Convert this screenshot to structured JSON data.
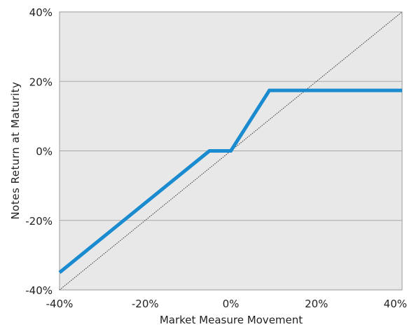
{
  "chart_data": {
    "type": "line",
    "title": "",
    "xlabel": "Market Measure Movement",
    "ylabel": "Notes Return at Maturity",
    "xlim": [
      -40,
      40
    ],
    "ylim": [
      -40,
      40
    ],
    "x_ticks": [
      -40,
      -20,
      0,
      20,
      40
    ],
    "y_ticks": [
      -40,
      -20,
      0,
      20,
      40
    ],
    "x_tick_labels": [
      "-40%",
      "-20%",
      "0%",
      "20%",
      "40%"
    ],
    "y_tick_labels": [
      "-40%",
      "-20%",
      "0%",
      "20%",
      "40%"
    ],
    "grid": "horizontal",
    "background": "#e8e8e8",
    "series": [
      {
        "style": "solid",
        "color": "#1b8bd0",
        "points": [
          [
            -40,
            -35
          ],
          [
            -5,
            0
          ],
          [
            0,
            0
          ],
          [
            9,
            17.4
          ],
          [
            40,
            17.4
          ]
        ]
      },
      {
        "style": "dotted",
        "color": "#333333",
        "points": [
          [
            -40,
            -40
          ],
          [
            40,
            40
          ]
        ]
      }
    ]
  }
}
